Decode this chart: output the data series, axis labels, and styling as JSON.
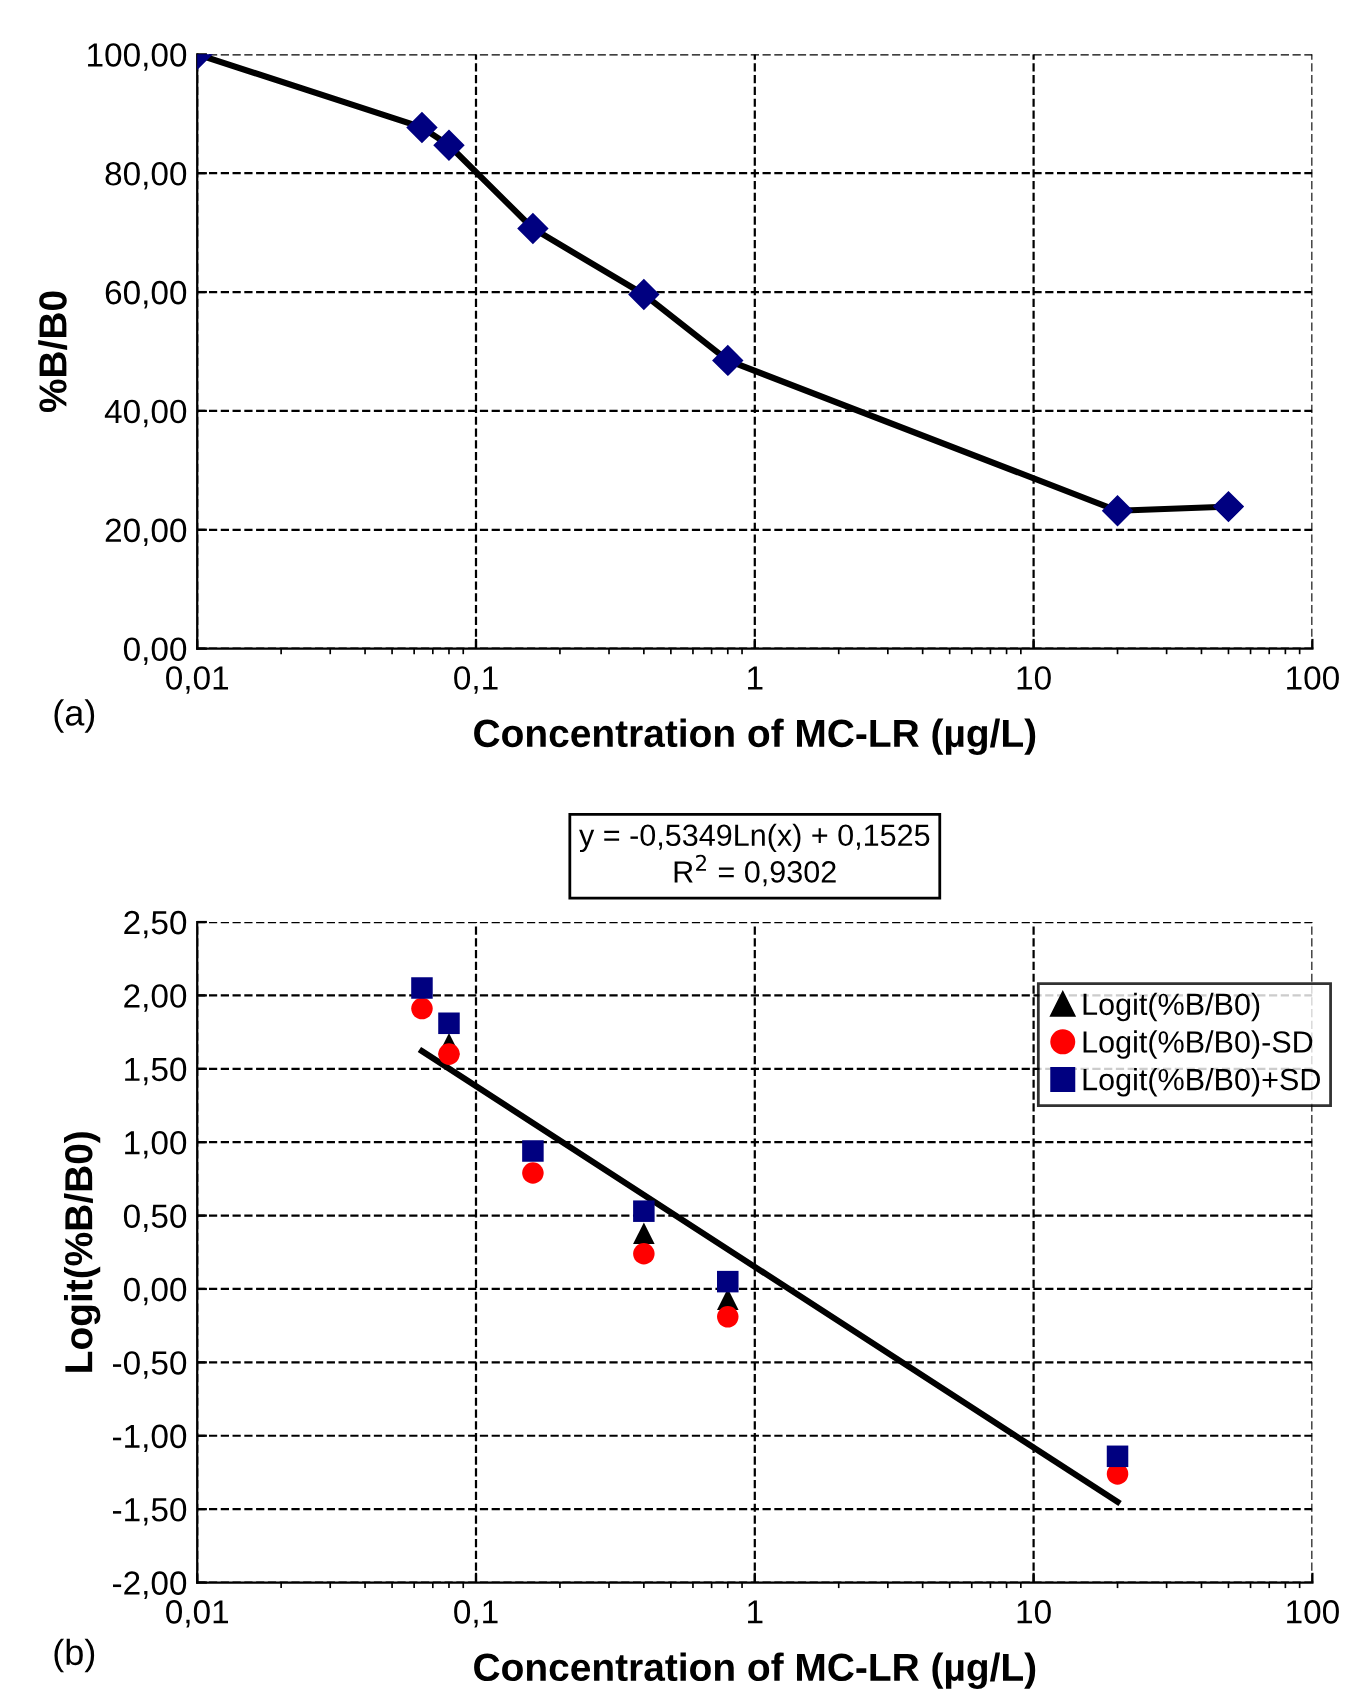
{
  "chart_data": [
    {
      "type": "line",
      "xlabel": "Concentration of MC-LR (µg/L)",
      "ylabel": "%B/B0",
      "log": "x",
      "grid": true,
      "marker": "diamond",
      "line_style": "solid",
      "legend": false,
      "x": [
        0.01,
        0.064,
        0.08,
        0.16,
        0.4,
        0.8,
        20,
        50
      ],
      "series": [
        {
          "color": "#000080",
          "values": [
            100,
            87.7,
            84.7,
            70.7,
            59.6,
            48.5,
            23.2,
            23.9
          ]
        }
      ],
      "xlim": [
        0.01,
        100
      ],
      "xticks": [
        {
          "value": 0.01,
          "label": "0,01"
        },
        {
          "value": 0.1,
          "label": "0,1"
        },
        1,
        10,
        100
      ],
      "ylim": [
        0,
        100
      ],
      "yticks": [
        {
          "value": 0,
          "label": "0,00"
        },
        {
          "value": 20,
          "label": "20,00"
        },
        {
          "value": 40,
          "label": "40,00"
        },
        {
          "value": 60,
          "label": "60,00"
        },
        {
          "value": 80,
          "label": "80,00"
        },
        {
          "value": 100,
          "label": "100,00"
        }
      ],
      "annotations": [
        "(a)"
      ]
    },
    {
      "type": "scatter",
      "xlabel": "Concentration of MC-LR (µg/L)",
      "ylabel": "Logit(%B/B0)",
      "log": "x",
      "grid": true,
      "legend": "top right",
      "x": [
        0.064,
        0.08,
        0.16,
        0.4,
        0.8,
        20
      ],
      "series": [
        {
          "name": "Logit(%B/B0)",
          "color": "#000000",
          "marker": "triangle",
          "values": [
            null,
            1.67,
            null,
            0.38,
            -0.07,
            null
          ]
        },
        {
          "name": "Logit(%B/B0)-SD",
          "color": "#ff0000",
          "marker": "circle",
          "values": [
            1.91,
            1.6,
            0.79,
            0.24,
            -0.19,
            -1.26
          ]
        },
        {
          "name": "Logit(%B/B0)+SD",
          "color": "#000080",
          "marker": "square",
          "values": [
            2.05,
            1.81,
            0.94,
            0.53,
            0.05,
            -1.14
          ]
        },
        {
          "type": "line",
          "color": "#000000",
          "x": [
            0.064,
            20
          ],
          "values": [
            1.62,
            -1.45
          ]
        }
      ],
      "xlim": [
        0.01,
        100
      ],
      "xticks": [
        {
          "value": 0.01,
          "label": "0,01"
        },
        {
          "value": 0.1,
          "label": "0,1"
        },
        1,
        10,
        {
          "value": 100,
          "label": "100"
        }
      ],
      "ylim": [
        -2,
        2.5
      ],
      "yticks": [
        {
          "value": -2,
          "label": "-2,00"
        },
        {
          "value": -1.5,
          "label": "-1,50"
        },
        {
          "value": -1,
          "label": "-1,00"
        },
        {
          "value": -0.5,
          "label": "-0,50"
        },
        {
          "value": 0,
          "label": "0,00"
        },
        {
          "value": 0.5,
          "label": "0,50"
        },
        {
          "value": 1,
          "label": "1,00"
        },
        {
          "value": 1.5,
          "label": "1,50"
        },
        {
          "value": 2,
          "label": "2,00"
        },
        {
          "value": 2.5,
          "label": "2,50"
        }
      ],
      "annotations": [
        "y = -0,5349Ln(x) + 0,1525\nR$^{2}$ = 0,9302",
        "(b)"
      ]
    }
  ]
}
